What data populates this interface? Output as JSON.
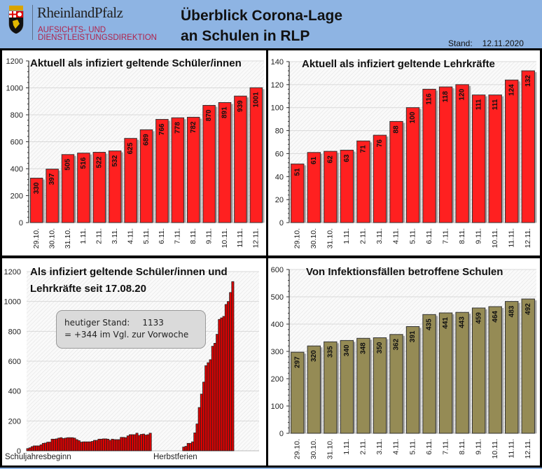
{
  "header": {
    "logo_name": "RheinlandPfalz",
    "logo_sub_line1": "AUFSICHTS- UND",
    "logo_sub_line2": "DIENSTLEISTUNGSDIREKTION",
    "title_line1": "Überblick Corona-Lage",
    "title_line2": "an Schulen in RLP",
    "stand_label": "Stand:",
    "stand_date": "12.11.2020",
    "colors": {
      "background": "#8eb4e3",
      "logo_sub": "#b0234b"
    }
  },
  "callout": {
    "label": "heutiger Stand:",
    "value": "1133",
    "line2": "=  +344 im Vgl. zur Vorwoche"
  },
  "chart_data": [
    {
      "id": "students",
      "type": "bar",
      "title": "Aktuell als infiziert geltende Schüler/innen",
      "categories": [
        "29.10.",
        "30.10.",
        "31.10.",
        "1.11.",
        "2.11.",
        "3.11.",
        "4.11.",
        "5.11.",
        "6.11.",
        "7.11.",
        "8.11.",
        "9.11.",
        "10.11.",
        "11.11.",
        "12.11."
      ],
      "values": [
        330,
        397,
        505,
        516,
        522,
        532,
        625,
        689,
        766,
        778,
        782,
        870,
        891,
        939,
        1001
      ],
      "ylim": [
        0,
        1200
      ],
      "yticks": [
        0,
        200,
        400,
        600,
        800,
        1000,
        1200
      ],
      "xlabel": "",
      "ylabel": "",
      "grid": true,
      "color": "#ff2020",
      "data_labels": true
    },
    {
      "id": "teachers",
      "type": "bar",
      "title": "Aktuell als infiziert geltende Lehrkräfte",
      "categories": [
        "29.10.",
        "30.10.",
        "31.10.",
        "1.11.",
        "2.11.",
        "3.11.",
        "4.11.",
        "5.11.",
        "6.11.",
        "7.11.",
        "8.11.",
        "9.11.",
        "10.11.",
        "11.11.",
        "12.11."
      ],
      "values": [
        51,
        61,
        62,
        63,
        71,
        76,
        88,
        100,
        116,
        118,
        120,
        111,
        111,
        124,
        132
      ],
      "ylim": [
        0,
        140
      ],
      "yticks": [
        0,
        20,
        40,
        60,
        80,
        100,
        120,
        140
      ],
      "xlabel": "",
      "ylabel": "",
      "grid": true,
      "color": "#ff2020",
      "data_labels": true
    },
    {
      "id": "cumulative",
      "type": "bar",
      "title_line1": "Als infiziert geltende Schüler/innen und",
      "title_line2": "Lehrkräfte seit 17.08.20",
      "x_annotations": [
        "Schuljahresbeginn",
        "Herbstferien"
      ],
      "values_before_break": [
        15,
        20,
        28,
        33,
        33,
        33,
        40,
        50,
        52,
        58,
        58,
        78,
        78,
        80,
        85,
        88,
        82,
        85,
        88,
        88,
        88,
        85,
        75,
        68,
        58,
        60,
        60,
        60,
        60,
        63,
        70,
        70,
        78,
        78,
        80,
        80,
        78,
        70,
        78,
        75,
        75,
        75,
        90,
        90,
        88,
        100,
        108,
        108,
        108,
        118,
        103,
        110,
        112,
        105,
        108,
        118
      ],
      "gap_days": 14,
      "values_after_break": [
        25,
        30,
        50,
        50,
        60,
        120,
        180,
        290,
        380,
        460,
        570,
        590,
        610,
        700,
        720,
        780,
        880,
        890,
        900,
        980,
        1000,
        1060,
        1133
      ],
      "ylim": [
        0,
        1200
      ],
      "yticks": [
        0,
        200,
        400,
        600,
        800,
        1000,
        1200
      ],
      "grid": true,
      "color": "#e00000",
      "data_labels": false
    },
    {
      "id": "schools",
      "type": "bar",
      "title": "Von Infektionsfällen betroffene Schulen",
      "categories": [
        "29.10.",
        "30.10.",
        "31.10.",
        "1.11.",
        "2.11.",
        "3.11.",
        "4.11.",
        "5.11.",
        "6.11.",
        "7.11.",
        "8.11.",
        "9.11.",
        "10.11.",
        "11.11.",
        "12.11."
      ],
      "values": [
        297,
        320,
        335,
        340,
        348,
        350,
        362,
        391,
        435,
        441,
        443,
        459,
        464,
        483,
        492
      ],
      "ylim": [
        0,
        600
      ],
      "yticks": [
        0,
        100,
        200,
        300,
        400,
        500,
        600
      ],
      "xlabel": "",
      "ylabel": "",
      "grid": true,
      "color": "#958b55",
      "data_labels": true
    }
  ]
}
